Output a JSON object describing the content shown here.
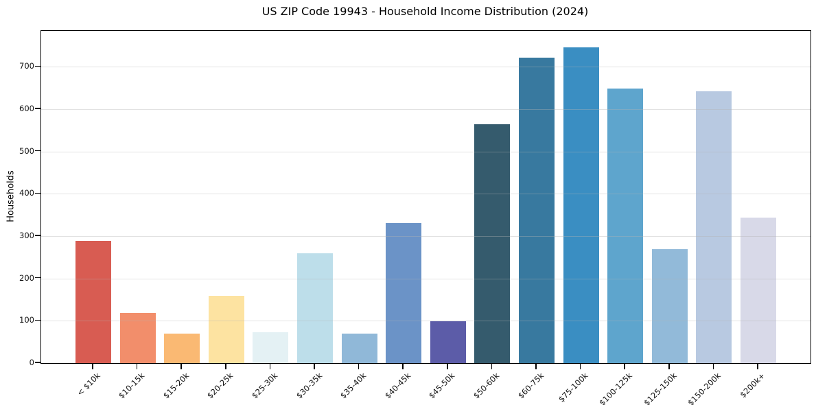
{
  "chart_data": {
    "type": "bar",
    "title": "US ZIP Code 19943 - Household Income Distribution (2024)",
    "xlabel": "",
    "ylabel": "Households",
    "categories": [
      "< $10k",
      "$10-15k",
      "$15-20k",
      "$20-25k",
      "$25-30k",
      "$30-35k",
      "$35-40k",
      "$40-45k",
      "$45-50k",
      "$50-60k",
      "$60-75k",
      "$75-100k",
      "$100-125k",
      "$125-150k",
      "$150-200k",
      "$200k+"
    ],
    "values": [
      289,
      118,
      70,
      159,
      73,
      259,
      69,
      331,
      99,
      565,
      721,
      746,
      648,
      269,
      643,
      344
    ],
    "bar_colors": [
      "#d85c52",
      "#f28e6b",
      "#fab973",
      "#fde3a1",
      "#e4f1f4",
      "#bddeea",
      "#90b8d8",
      "#6b93c7",
      "#5c5ca8",
      "#355b6d",
      "#38799f",
      "#3a8ec2",
      "#5ea5cd",
      "#92bad9",
      "#b8c9e1",
      "#d8d9e8"
    ],
    "ylim": [
      0,
      785
    ],
    "yticks": [
      0,
      100,
      200,
      300,
      400,
      500,
      600,
      700
    ],
    "grid": "horizontal",
    "legend": "none"
  },
  "colors": {
    "background": "#ffffff",
    "axis": "#000000",
    "grid": "#b2b2b2",
    "text": "#000000",
    "tick_text": "#111111"
  }
}
